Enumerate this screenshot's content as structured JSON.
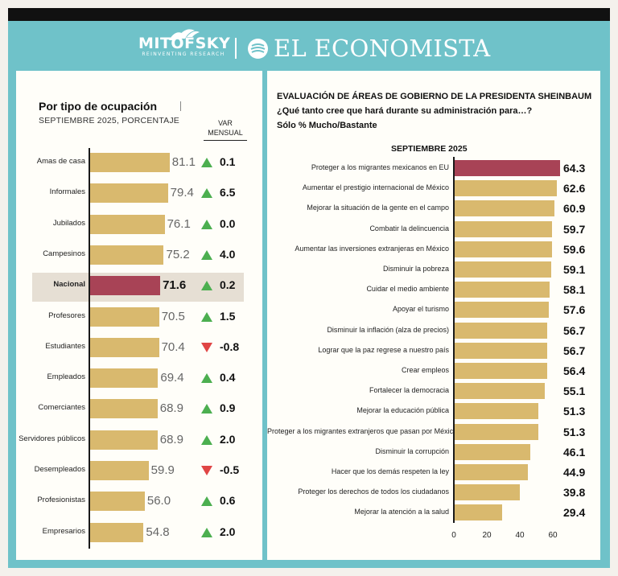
{
  "brand": {
    "mitofsky": "MITOFSKY",
    "mitofsky_tagline": "REINVENTING RESEARCH",
    "economista": "EL ECONOMISTA"
  },
  "colors": {
    "bar": "#d9b96e",
    "highlight": "#a84356",
    "teal": "#6fc2c9",
    "up": "#4caf50",
    "down": "#e04545"
  },
  "left": {
    "title": "Por tipo de ocupación",
    "subtitle": "SEPTIEMBRE 2025, PORCENTAJE",
    "var_label_1": "VAR",
    "var_label_2": "MENSUAL"
  },
  "right": {
    "title_line1": "EVALUACIÓN DE ÁREAS DE GOBIERNO DE LA PRESIDENTA SHEINBAUM",
    "title_line2": "¿Qué tanto cree que hará durante su administración  para…?",
    "title_line3": "Sólo % Mucho/Bastante",
    "period": "SEPTIEMBRE 2025"
  },
  "chart_data": [
    {
      "type": "bar",
      "orientation": "horizontal",
      "title": "Por tipo de ocupación",
      "subtitle": "SEPTIEMBRE 2025, PORCENTAJE",
      "highlight": "Nacional",
      "xlim": [
        0,
        100
      ],
      "categories": [
        "Amas de casa",
        "Informales",
        "Jubilados",
        "Campesinos",
        "Nacional",
        "Profesores",
        "Estudiantes",
        "Empleados",
        "Comerciantes",
        "Servidores públicos",
        "Desempleados",
        "Profesionistas",
        "Empresarios"
      ],
      "values": [
        81.1,
        79.4,
        76.1,
        75.2,
        71.6,
        70.5,
        70.4,
        69.4,
        68.9,
        68.9,
        59.9,
        56.0,
        54.8
      ],
      "value_labels": [
        "81.1",
        "79.4",
        "76.1",
        "75.2",
        "71.6",
        "70.5",
        "70.4",
        "69.4",
        "68.9",
        "68.9",
        "59.9",
        "56.0",
        "54.8"
      ],
      "var_mensual": [
        0.1,
        6.5,
        0.0,
        4.0,
        0.2,
        1.5,
        -0.8,
        0.4,
        0.9,
        2.0,
        -0.5,
        0.6,
        2.0
      ],
      "var_labels": [
        "0.1",
        "6.5",
        "0.0",
        "4.0",
        "0.2",
        "1.5",
        "-0.8",
        "0.4",
        "0.9",
        "2.0",
        "-0.5",
        "0.6",
        "2.0"
      ]
    },
    {
      "type": "bar",
      "orientation": "horizontal",
      "title": "EVALUACIÓN DE ÁREAS DE GOBIERNO DE LA PRESIDENTA SHEINBAUM",
      "subtitle": "SEPTIEMBRE 2025",
      "highlight": "Proteger a los migrantes mexicanos en EU",
      "xlim": [
        0,
        65
      ],
      "xticks": [
        0,
        20,
        40,
        60
      ],
      "xtick_labels": [
        "0",
        "20",
        "40",
        "60"
      ],
      "categories": [
        "Proteger a los migrantes mexicanos en EU",
        "Aumentar el prestigio internacional de México",
        "Mejorar la situación de la gente en el campo",
        "Combatir la delincuencia",
        "Aumentar las inversiones extranjeras en México",
        "Disminuir la pobreza",
        "Cuidar el medio ambiente",
        "Apoyar el turismo",
        "Disminuir la inflación (alza de precios)",
        "Lograr que la paz regrese a nuestro país",
        "Crear empleos",
        "Fortalecer la democracia",
        "Mejorar la educación pública",
        "Proteger a los migrantes extranjeros que pasan por México",
        "Disminuir la corrupción",
        "Hacer que los demás respeten la ley",
        "Proteger los derechos de todos los ciudadanos",
        "Mejorar la atención a la salud"
      ],
      "values": [
        64.3,
        62.6,
        60.9,
        59.7,
        59.6,
        59.1,
        58.1,
        57.6,
        56.7,
        56.7,
        56.4,
        55.1,
        51.3,
        51.3,
        46.1,
        44.9,
        39.8,
        29.4
      ],
      "value_labels": [
        "64.3",
        "62.6",
        "60.9",
        "59.7",
        "59.6",
        "59.1",
        "58.1",
        "57.6",
        "56.7",
        "56.7",
        "56.4",
        "55.1",
        "51.3",
        "51.3",
        "46.1",
        "44.9",
        "39.8",
        "29.4"
      ]
    }
  ]
}
